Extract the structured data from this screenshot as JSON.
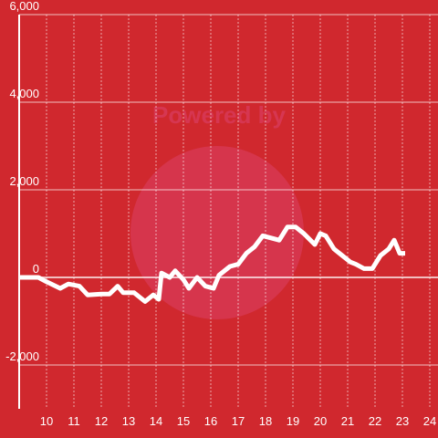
{
  "chart_data": {
    "type": "line",
    "watermark": "Powered by",
    "x": [
      9.0,
      9.7,
      10.0,
      10.5,
      10.8,
      11.2,
      11.5,
      12.0,
      12.3,
      12.6,
      12.8,
      13.2,
      13.6,
      13.9,
      14.1,
      14.2,
      14.5,
      14.7,
      15.0,
      15.2,
      15.5,
      15.8,
      16.1,
      16.3,
      16.7,
      17.0,
      17.3,
      17.6,
      17.9,
      18.2,
      18.5,
      18.8,
      19.1,
      19.4,
      19.8,
      20.0,
      20.2,
      20.5,
      20.8,
      21.1,
      21.3,
      21.6,
      21.9,
      22.2,
      22.5,
      22.7,
      22.9,
      23.1
    ],
    "series": [
      {
        "color": "#ffffff",
        "values": [
          0,
          0,
          -100,
          -250,
          -150,
          -200,
          -400,
          -380,
          -380,
          -200,
          -350,
          -350,
          -550,
          -400,
          -500,
          100,
          0,
          150,
          -50,
          -250,
          0,
          -200,
          -250,
          50,
          250,
          300,
          550,
          700,
          950,
          900,
          850,
          1150,
          1150,
          1000,
          750,
          1000,
          950,
          650,
          500,
          350,
          300,
          200,
          200,
          500,
          650,
          850,
          550,
          550
        ]
      }
    ],
    "xlim": [
      9,
      24.3
    ],
    "xticks": [
      10,
      11,
      12,
      13,
      14,
      15,
      16,
      17,
      18,
      19,
      20,
      21,
      22,
      23,
      24
    ],
    "ylim": [
      -3000,
      6000
    ],
    "yticks": [
      {
        "value": -2000,
        "label": "-2,000"
      },
      0,
      {
        "value": 2000,
        "label": "2,000"
      },
      {
        "value": 4000,
        "label": "4,000"
      },
      {
        "value": 6000,
        "label": "6,000"
      }
    ],
    "grid": true
  }
}
